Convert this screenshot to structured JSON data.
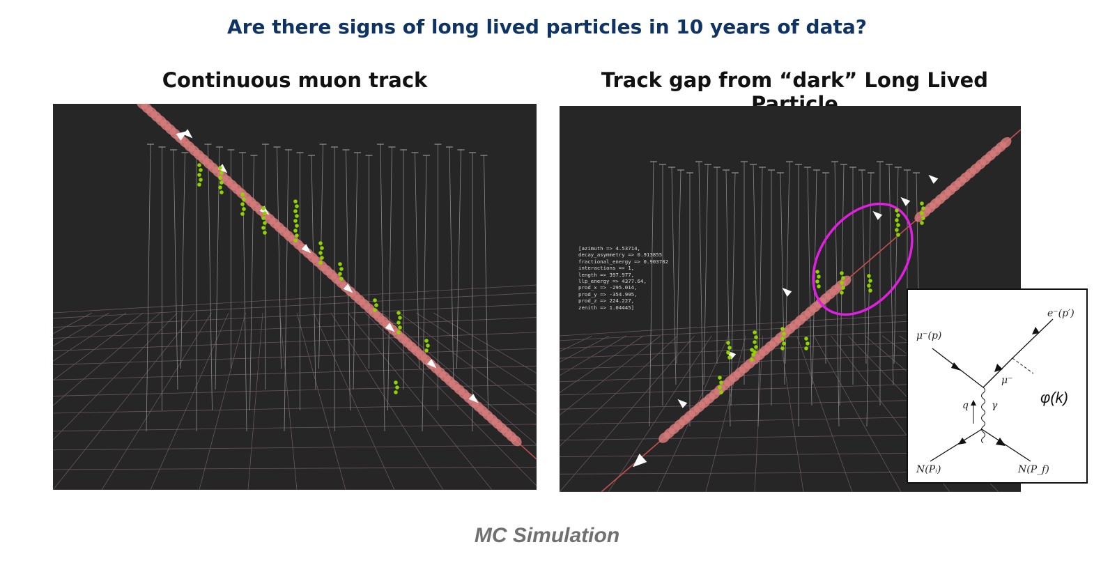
{
  "title": "Are there signs of long lived particles in 10 years of data?",
  "left_panel": {
    "heading": "Continuous muon track"
  },
  "right_panel": {
    "heading": "Track gap from “dark” Long Lived Particle",
    "info_lines": [
      "[azimuth => 4.53714,",
      "decay_asymmetry => 0.913855",
      "fractional_energy => 0.903782",
      "interactions => 1,",
      "length => 397.977,",
      "llp_energy => 4377.64,",
      "prod_x => -295.014,",
      "prod_y => -354.995,",
      "prod_z => 224.227,",
      "zenith => 1.04445]"
    ]
  },
  "feynman": {
    "incoming_muon": "μ⁻(p)",
    "outgoing_electron": "e⁻(p′)",
    "internal_muon": "μ⁻",
    "photon": "γ",
    "momentum_transfer": "q",
    "nucleus_in": "N(Pᵢ)",
    "nucleus_out": "N(P_f)",
    "dark_particle": "φ(k)"
  },
  "footer": "MC Simulation",
  "colors": {
    "title": "#0f3464",
    "panel_background": "#262626",
    "track": "#c0504d",
    "hits": "#8fd400",
    "highlight_ellipse": "#e020e0"
  }
}
